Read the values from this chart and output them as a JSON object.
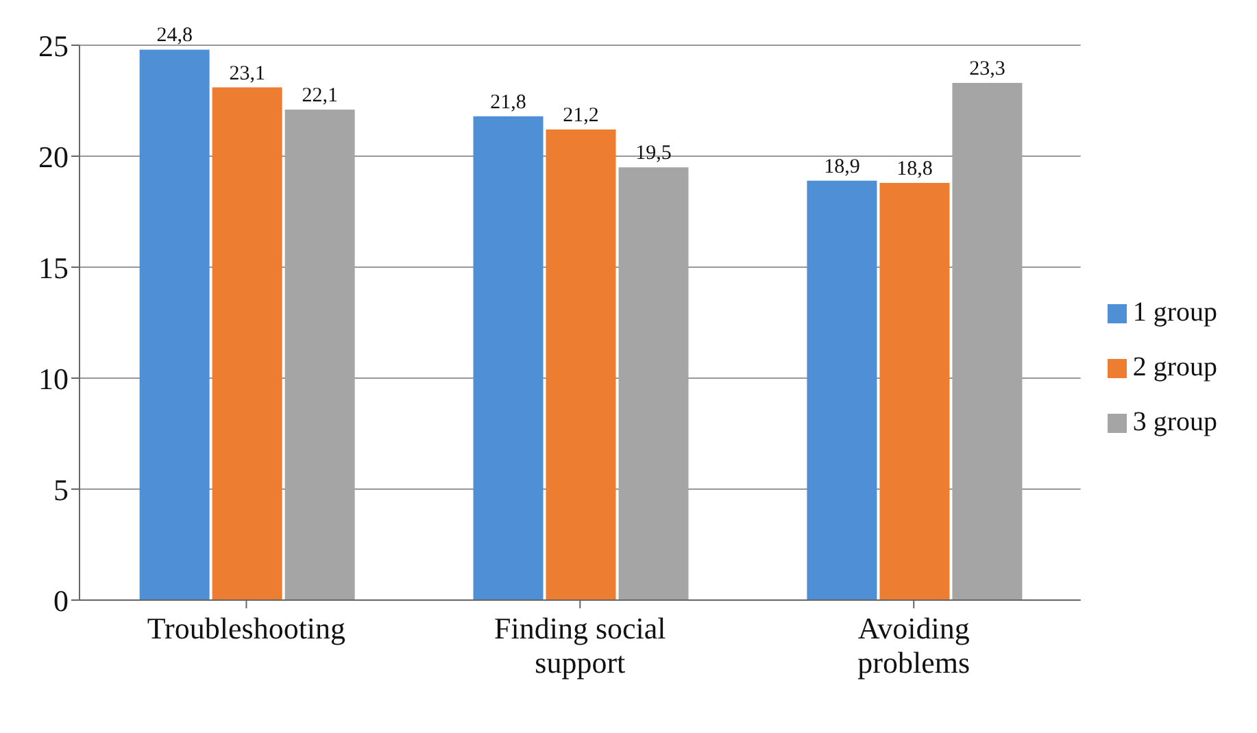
{
  "chart_data": {
    "type": "bar",
    "categories": [
      "Troubleshooting",
      "Finding social support",
      "Avoiding problems"
    ],
    "series": [
      {
        "name": "1 group",
        "color": "#4f8fd6",
        "values": [
          24.8,
          21.8,
          18.9
        ],
        "value_labels": [
          "24,8",
          "21,8",
          "18,9"
        ]
      },
      {
        "name": "2 group",
        "color": "#ed7d31",
        "values": [
          23.1,
          21.2,
          18.8
        ],
        "value_labels": [
          "23,1",
          "21,2",
          "18,8"
        ]
      },
      {
        "name": "3 group",
        "color": "#a5a5a5",
        "values": [
          22.1,
          19.5,
          23.3
        ],
        "value_labels": [
          "22,1",
          "19,5",
          "23,3"
        ]
      }
    ],
    "ylim": [
      0,
      25
    ],
    "yticks": [
      0,
      5,
      10,
      15,
      20,
      25
    ],
    "grid": "y",
    "legend": "right"
  }
}
